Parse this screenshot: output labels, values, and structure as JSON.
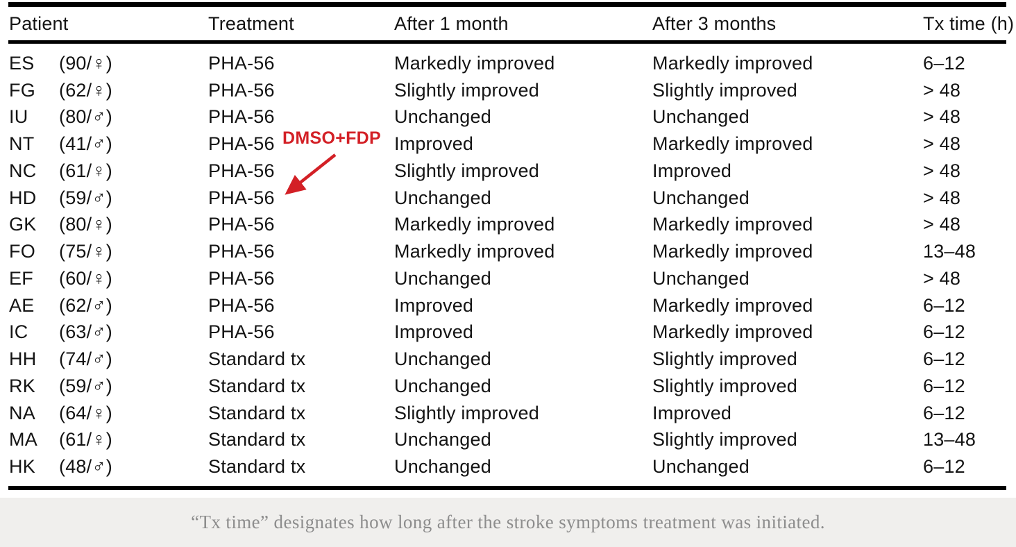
{
  "table": {
    "columns": [
      "Patient",
      "Treatment",
      "After 1 month",
      "After 3 months",
      "Tx time (h)"
    ],
    "rows": [
      {
        "id": "ES",
        "age_sex": "(90/♀)",
        "treatment": "PHA-56",
        "after_1_month": "Markedly improved",
        "after_3_months": "Markedly improved",
        "tx_time": "6–12"
      },
      {
        "id": "FG",
        "age_sex": "(62/♀)",
        "treatment": "PHA-56",
        "after_1_month": "Slightly improved",
        "after_3_months": "Slightly improved",
        "tx_time": "> 48"
      },
      {
        "id": "IU",
        "age_sex": "(80/♂)",
        "treatment": "PHA-56",
        "after_1_month": "Unchanged",
        "after_3_months": "Unchanged",
        "tx_time": "> 48"
      },
      {
        "id": "NT",
        "age_sex": "(41/♂)",
        "treatment": "PHA-56",
        "after_1_month": "Improved",
        "after_3_months": "Markedly improved",
        "tx_time": "> 48"
      },
      {
        "id": "NC",
        "age_sex": "(61/♀)",
        "treatment": "PHA-56",
        "after_1_month": "Slightly improved",
        "after_3_months": "Improved",
        "tx_time": "> 48"
      },
      {
        "id": "HD",
        "age_sex": "(59/♂)",
        "treatment": "PHA-56",
        "after_1_month": "Unchanged",
        "after_3_months": "Unchanged",
        "tx_time": "> 48"
      },
      {
        "id": "GK",
        "age_sex": "(80/♀)",
        "treatment": "PHA-56",
        "after_1_month": "Markedly improved",
        "after_3_months": "Markedly improved",
        "tx_time": "> 48"
      },
      {
        "id": "FO",
        "age_sex": "(75/♀)",
        "treatment": "PHA-56",
        "after_1_month": "Markedly improved",
        "after_3_months": "Markedly improved",
        "tx_time": "13–48"
      },
      {
        "id": "EF",
        "age_sex": "(60/♀)",
        "treatment": "PHA-56",
        "after_1_month": "Unchanged",
        "after_3_months": "Unchanged",
        "tx_time": "> 48"
      },
      {
        "id": "AE",
        "age_sex": "(62/♂)",
        "treatment": "PHA-56",
        "after_1_month": "Improved",
        "after_3_months": "Markedly improved",
        "tx_time": "6–12"
      },
      {
        "id": "IC",
        "age_sex": "(63/♂)",
        "treatment": "PHA-56",
        "after_1_month": "Improved",
        "after_3_months": "Markedly improved",
        "tx_time": "6–12"
      },
      {
        "id": "HH",
        "age_sex": "(74/♂)",
        "treatment": "Standard tx",
        "after_1_month": "Unchanged",
        "after_3_months": "Slightly improved",
        "tx_time": "6–12"
      },
      {
        "id": "RK",
        "age_sex": "(59/♂)",
        "treatment": "Standard tx",
        "after_1_month": "Unchanged",
        "after_3_months": "Slightly improved",
        "tx_time": "6–12"
      },
      {
        "id": "NA",
        "age_sex": "(64/♀)",
        "treatment": "Standard tx",
        "after_1_month": "Slightly improved",
        "after_3_months": "Improved",
        "tx_time": "6–12"
      },
      {
        "id": "MA",
        "age_sex": "(61/♀)",
        "treatment": "Standard tx",
        "after_1_month": "Unchanged",
        "after_3_months": "Slightly improved",
        "tx_time": "13–48"
      },
      {
        "id": "HK",
        "age_sex": "(48/♂)",
        "treatment": "Standard tx",
        "after_1_month": "Unchanged",
        "after_3_months": "Unchanged",
        "tx_time": "6–12"
      }
    ]
  },
  "annotation": {
    "label": "DMSO+FDP",
    "color": "#d32026",
    "points_to_row": "HD"
  },
  "caption": "“Tx time” designates how long after the stroke symptoms treatment was initiated.",
  "colors": {
    "rule": "#000000",
    "caption_band": "#f0efed",
    "caption_text": "#8d8d8d",
    "annotation_red": "#d32026"
  }
}
